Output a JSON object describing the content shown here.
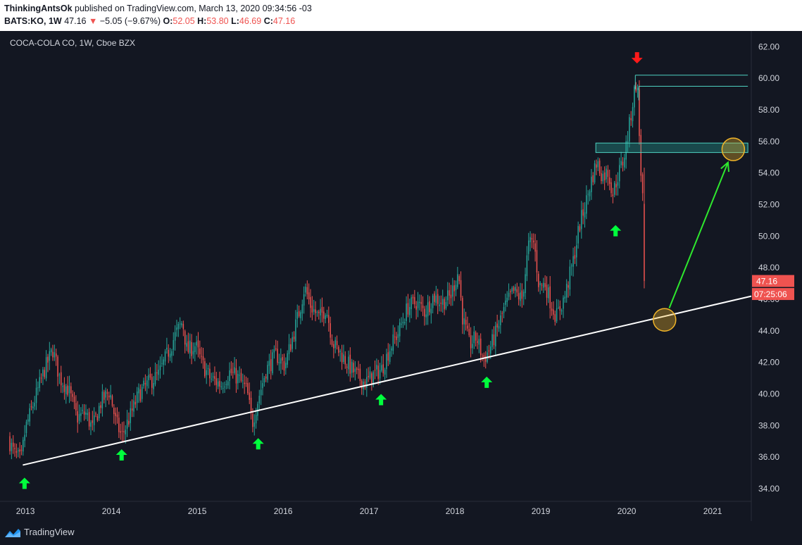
{
  "header": {
    "publisher": "ThinkingAntsOk",
    "published_text": " published on TradingView.com, March 13, 2020 09:34:56 -03",
    "symbol": "BATS:KO, 1W",
    "last": "47.16",
    "change_arrow": "▼",
    "change": "−5.05 (−9.67%)",
    "o_label": "O:",
    "o_val": "52.05",
    "h_label": "H:",
    "h_val": "53.80",
    "l_label": "L:",
    "l_val": "46.69",
    "c_label": "C:",
    "c_val": "47.16"
  },
  "footer": {
    "brand": "TradingView"
  },
  "colors": {
    "up": "#26a69a",
    "down": "#ef5350",
    "bg": "#131722",
    "trend": "#ffffff",
    "arrow": "#00ff3c",
    "red_arrow": "#ff1a1a",
    "circle": "#f0b429",
    "price_tag": "#ef5350"
  },
  "chart_data": {
    "type": "candlestick",
    "title": "COCA-COLA CO, 1W, Cboe BZX",
    "xlabel": "",
    "ylabel": "",
    "x_ticks": [
      "2013",
      "2014",
      "2015",
      "2016",
      "2017",
      "2018",
      "2019",
      "2020",
      "2021"
    ],
    "y_ticks": [
      "34.00",
      "36.00",
      "38.00",
      "40.00",
      "42.00",
      "44.00",
      "46.00",
      "48.00",
      "50.00",
      "52.00",
      "54.00",
      "56.00",
      "58.00",
      "60.00",
      "62.00"
    ],
    "ylim": [
      33.2,
      63.0
    ],
    "xlim": [
      2012.77,
      2021.45
    ],
    "last_price_label": "47.16",
    "countdown_label": "07:25:06",
    "path_waypoints": [
      [
        2012.8,
        37.2
      ],
      [
        2012.87,
        36.2
      ],
      [
        2012.95,
        35.8
      ],
      [
        2013.0,
        37.8
      ],
      [
        2013.1,
        39.5
      ],
      [
        2013.22,
        41.5
      ],
      [
        2013.32,
        42.8
      ],
      [
        2013.4,
        41.0
      ],
      [
        2013.5,
        40.3
      ],
      [
        2013.6,
        38.5
      ],
      [
        2013.7,
        38.8
      ],
      [
        2013.78,
        37.8
      ],
      [
        2013.88,
        39.5
      ],
      [
        2013.98,
        40.2
      ],
      [
        2014.05,
        38.3
      ],
      [
        2014.12,
        37.3
      ],
      [
        2014.22,
        38.6
      ],
      [
        2014.32,
        40.0
      ],
      [
        2014.45,
        40.8
      ],
      [
        2014.55,
        41.2
      ],
      [
        2014.65,
        42.5
      ],
      [
        2014.75,
        43.8
      ],
      [
        2014.83,
        44.6
      ],
      [
        2014.88,
        42.7
      ],
      [
        2014.98,
        43.1
      ],
      [
        2015.05,
        42.0
      ],
      [
        2015.15,
        41.0
      ],
      [
        2015.28,
        40.6
      ],
      [
        2015.38,
        41.4
      ],
      [
        2015.48,
        41.0
      ],
      [
        2015.58,
        40.2
      ],
      [
        2015.64,
        38.1
      ],
      [
        2015.7,
        39.5
      ],
      [
        2015.8,
        41.5
      ],
      [
        2015.92,
        42.5
      ],
      [
        2016.02,
        41.8
      ],
      [
        2016.12,
        43.8
      ],
      [
        2016.2,
        45.5
      ],
      [
        2016.25,
        46.8
      ],
      [
        2016.32,
        45.6
      ],
      [
        2016.42,
        44.8
      ],
      [
        2016.5,
        45.5
      ],
      [
        2016.58,
        43.2
      ],
      [
        2016.68,
        42.5
      ],
      [
        2016.78,
        41.7
      ],
      [
        2016.88,
        41.0
      ],
      [
        2016.96,
        40.7
      ],
      [
        2017.05,
        41.2
      ],
      [
        2017.15,
        41.6
      ],
      [
        2017.25,
        43.0
      ],
      [
        2017.35,
        44.0
      ],
      [
        2017.45,
        45.5
      ],
      [
        2017.55,
        45.8
      ],
      [
        2017.65,
        45.2
      ],
      [
        2017.75,
        46.2
      ],
      [
        2017.85,
        45.8
      ],
      [
        2017.95,
        46.2
      ],
      [
        2018.04,
        47.8
      ],
      [
        2018.09,
        44.8
      ],
      [
        2018.17,
        43.1
      ],
      [
        2018.25,
        43.6
      ],
      [
        2018.33,
        42.2
      ],
      [
        2018.4,
        42.8
      ],
      [
        2018.48,
        43.9
      ],
      [
        2018.58,
        45.5
      ],
      [
        2018.68,
        46.5
      ],
      [
        2018.78,
        46.0
      ],
      [
        2018.86,
        49.5
      ],
      [
        2018.92,
        49.6
      ],
      [
        2018.98,
        46.8
      ],
      [
        2019.05,
        47.0
      ],
      [
        2019.12,
        45.7
      ],
      [
        2019.18,
        44.9
      ],
      [
        2019.28,
        46.2
      ],
      [
        2019.38,
        48.5
      ],
      [
        2019.45,
        50.7
      ],
      [
        2019.52,
        52.0
      ],
      [
        2019.58,
        53.4
      ],
      [
        2019.65,
        54.7
      ],
      [
        2019.72,
        53.8
      ],
      [
        2019.78,
        54.1
      ],
      [
        2019.84,
        52.7
      ],
      [
        2019.9,
        53.9
      ],
      [
        2019.96,
        54.8
      ],
      [
        2020.02,
        56.6
      ],
      [
        2020.08,
        58.9
      ],
      [
        2020.12,
        60.0
      ],
      [
        2020.16,
        54.5
      ],
      [
        2020.19,
        52.05
      ],
      [
        2020.21,
        47.16
      ]
    ],
    "resistance_zones": [
      {
        "x_start": 2020.1,
        "x_end": 2021.41,
        "y_low": 60.2,
        "y_high": 60.2
      },
      {
        "x_start": 2020.14,
        "x_end": 2021.41,
        "y_low": 59.5,
        "y_high": 59.5
      },
      {
        "x_start": 2019.64,
        "x_end": 2021.41,
        "y_low": 55.3,
        "y_high": 55.9
      }
    ],
    "trendline": {
      "from": [
        2012.97,
        35.5
      ],
      "to": [
        2021.45,
        46.2
      ]
    },
    "support_arrows_x": [
      2012.99,
      2014.12,
      2015.71,
      2017.14,
      2018.37,
      2019.87
    ],
    "support_arrows_y": [
      34.3,
      36.1,
      36.8,
      39.6,
      40.7,
      50.3
    ],
    "top_arrow": [
      2020.12,
      61.3
    ],
    "projection": {
      "from": [
        2020.44,
        44.7
      ],
      "to": [
        2021.24,
        55.5
      ]
    },
    "circles": [
      [
        2020.44,
        44.7
      ],
      [
        2021.24,
        55.5
      ]
    ]
  }
}
